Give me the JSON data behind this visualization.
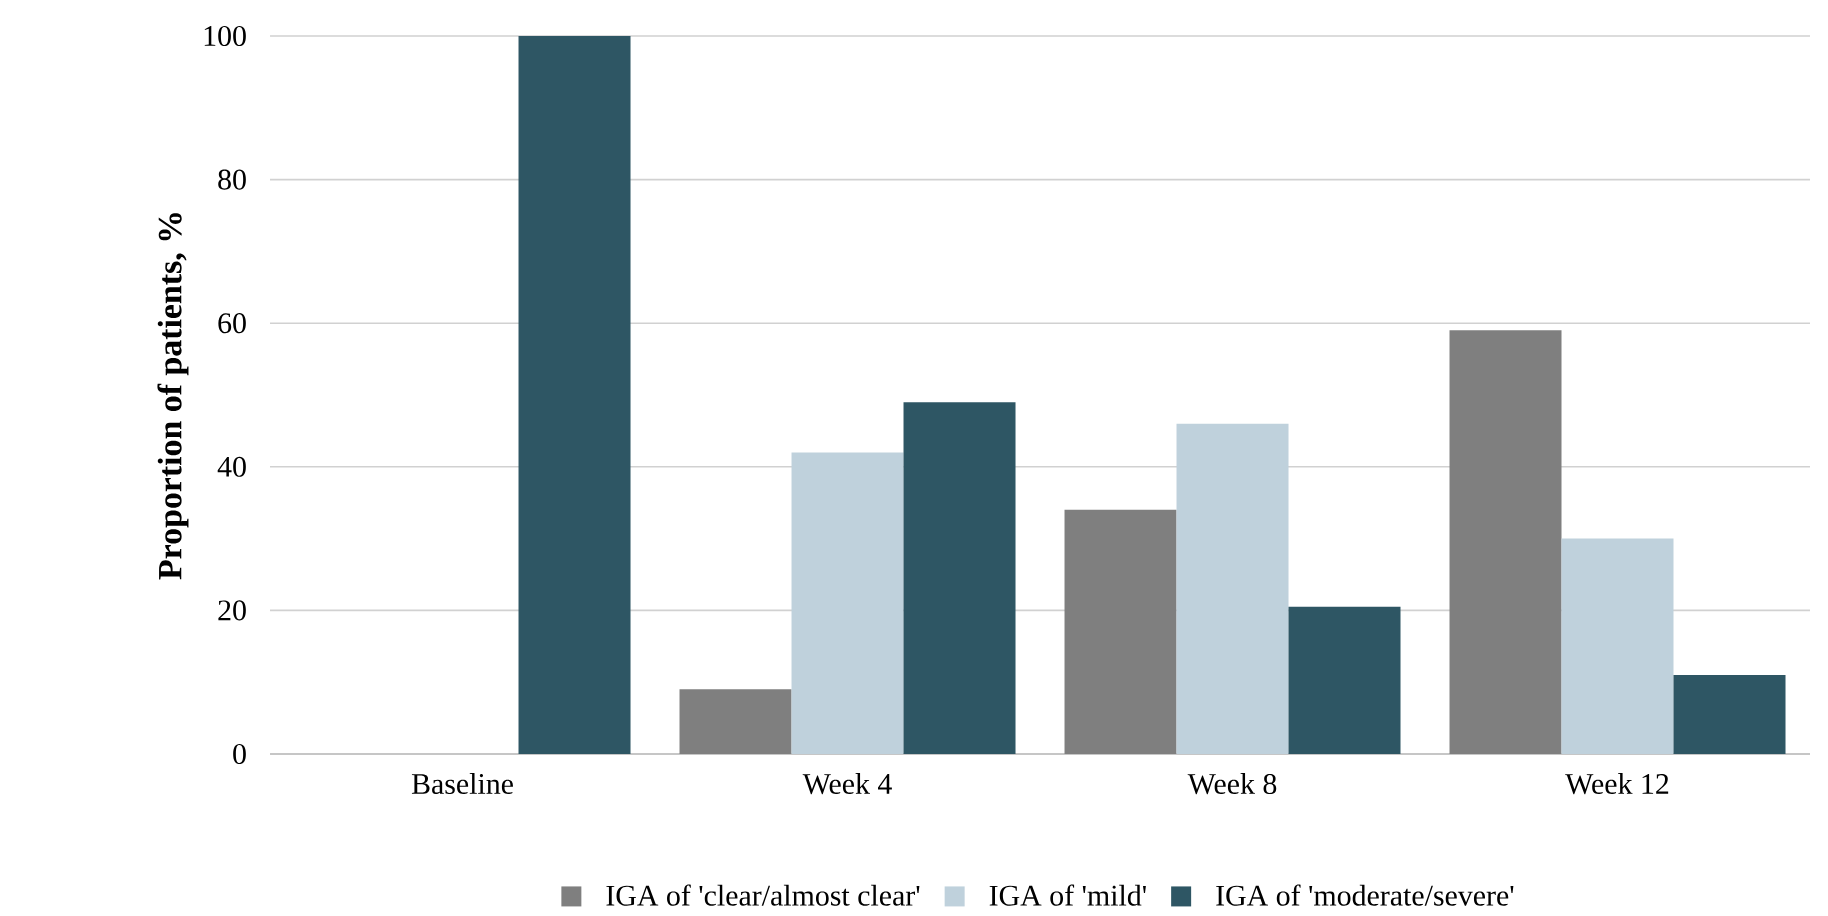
{
  "chart_data": {
    "type": "bar",
    "ylabel": "Proportion of patients, %",
    "categories": [
      "Baseline",
      "Week 4",
      "Week 8",
      "Week 12"
    ],
    "series": [
      {
        "name": "IGA of 'clear/almost clear'",
        "color": "#7f7f7f",
        "values": [
          0,
          9,
          34,
          59
        ]
      },
      {
        "name": "IGA of 'mild'",
        "color": "#bfd1dc",
        "values": [
          0,
          42,
          46,
          30
        ]
      },
      {
        "name": "IGA of 'moderate/severe'",
        "color": "#2e5664",
        "values": [
          100,
          49,
          20.5,
          11
        ]
      }
    ],
    "ylim": [
      0,
      100
    ],
    "yticks": [
      0,
      20,
      40,
      60,
      80,
      100
    ],
    "grid": "y",
    "legend": "bottom"
  }
}
